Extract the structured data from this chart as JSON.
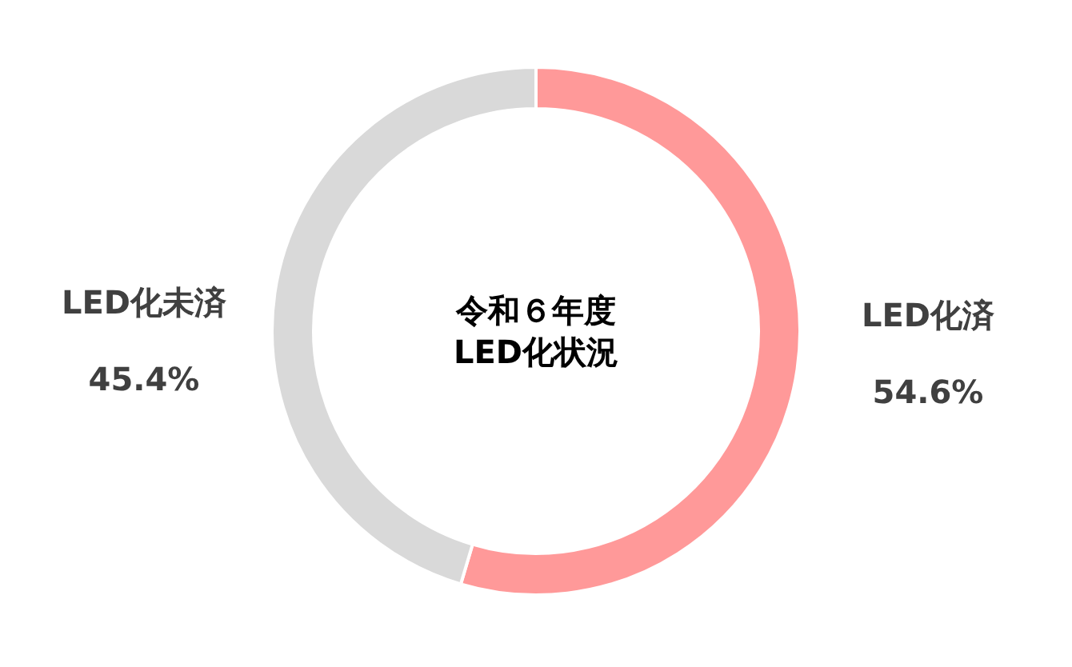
{
  "chart_data": {
    "type": "donut",
    "title": "令和６年度\nLED化状況",
    "categories": [
      "LED化済",
      "LED化未済"
    ],
    "values": [
      54.6,
      45.4
    ],
    "colors": [
      "#ff9999",
      "#d9d9d9"
    ],
    "value_labels": [
      "54.6%",
      "45.4%"
    ]
  }
}
